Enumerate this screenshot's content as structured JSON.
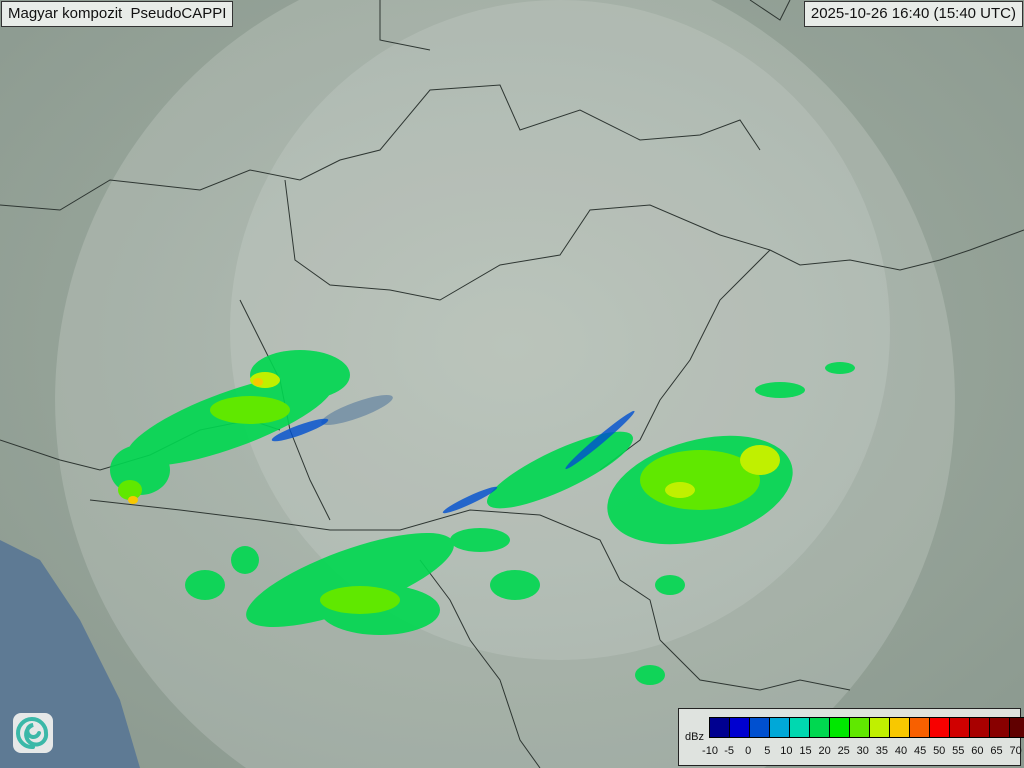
{
  "header": {
    "title": "Magyar kompozit  PseudoCAPPI",
    "timestamp": "2025-10-26 16:40 (15:40 UTC)"
  },
  "legend": {
    "unit": "dBz",
    "ticks": [
      "-10",
      "-5",
      "0",
      "5",
      "10",
      "15",
      "20",
      "25",
      "30",
      "35",
      "40",
      "45",
      "50",
      "55",
      "60",
      "65",
      "70"
    ],
    "colors": [
      "#000090",
      "#0000d0",
      "#0050d0",
      "#00a8d8",
      "#00d8b0",
      "#00d850",
      "#00e800",
      "#60e800",
      "#c0f000",
      "#f8c800",
      "#f86000",
      "#f80000",
      "#d00000",
      "#a80000",
      "#880000",
      "#600000"
    ]
  },
  "logo": {
    "icon": "swirl-logo-icon"
  }
}
